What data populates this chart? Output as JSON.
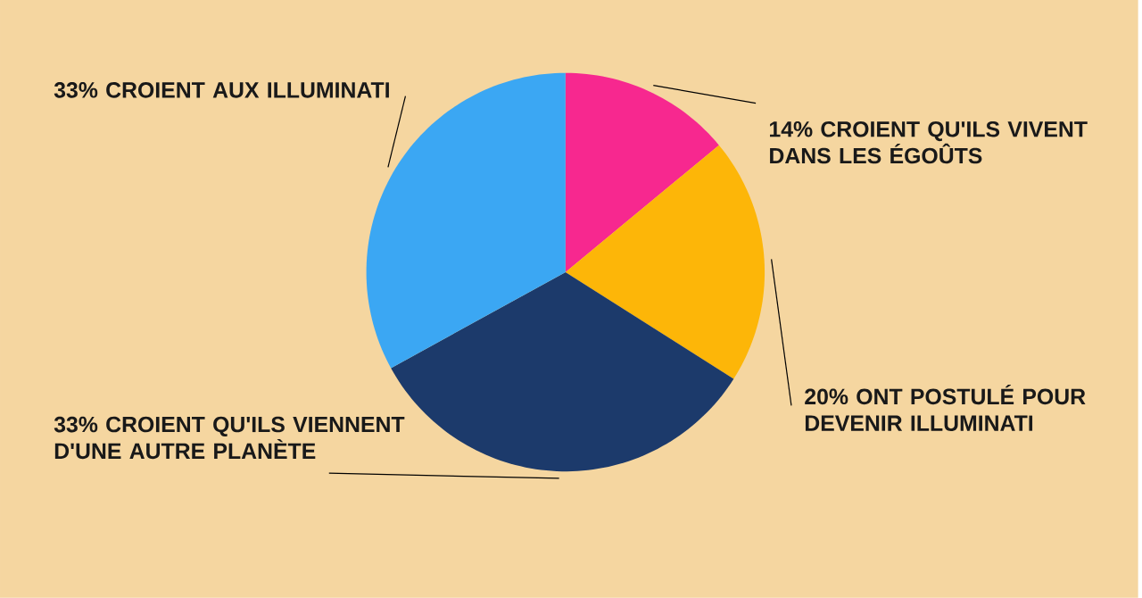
{
  "chart_data": {
    "type": "pie",
    "categories": [
      "14% CROIENT QU'ILS VIVENT DANS LES ÉGOÛTS",
      "20% ONT POSTULÉ POUR DEVENIR ILLUMINATI",
      "33% CROIENT QU'ILS VIENNENT D'UNE AUTRE PLANÈTE",
      "33% CROIENT AUX ILLUMINATI"
    ],
    "values": [
      14,
      20,
      33,
      33
    ],
    "colors": [
      "#f7288f",
      "#fdb608",
      "#1c3a6b",
      "#3ba7f3"
    ]
  }
}
